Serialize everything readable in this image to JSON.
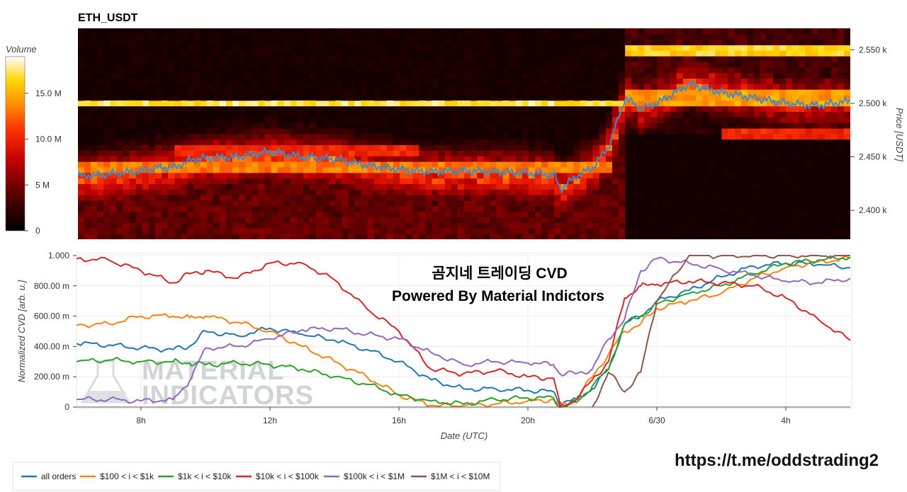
{
  "heatmap": {
    "title": "ETH_USDT",
    "colorbar_label": "Volume",
    "colorbar_ticks": [
      "15.0 M",
      "10.0 M",
      "5 M",
      "0"
    ],
    "colorbar_tick_values": [
      15,
      10,
      5,
      0
    ],
    "colorbar_max": 19,
    "y_label": "Price [USDT]",
    "y_ticks": [
      "2.550 k",
      "2.500 k",
      "2.450 k",
      "2.400 k"
    ],
    "y_tick_values": [
      2550,
      2500,
      2450,
      2400
    ],
    "y_range": [
      2373,
      2570
    ],
    "price_line_color": "#3b8bd0"
  },
  "cvd": {
    "y_label": "Normalized CVD [arb. u.]",
    "y_ticks": [
      "1.000",
      "800.00 m",
      "600.00 m",
      "400.00 m",
      "200.00 m",
      "0"
    ],
    "y_tick_values": [
      1,
      0.8,
      0.6,
      0.4,
      0.2,
      0
    ],
    "x_ticks": [
      "8h",
      "12h",
      "16h",
      "20h",
      "6/30",
      "4h"
    ],
    "x_tick_values": [
      8,
      12,
      16,
      20,
      24,
      28
    ],
    "x_range": [
      6,
      30
    ],
    "x_label": "Date (UTC)",
    "overlay_line1": "곰지네 트레이딩 CVD",
    "overlay_line2": "Powered By Material Indictors",
    "watermark_line1": "MATERIAL",
    "watermark_line2": "INDICATORS"
  },
  "legend": {
    "items": [
      {
        "label": "all orders",
        "color": "#1f77b4"
      },
      {
        "label": "$100 < i < $1k",
        "color": "#ff7f0e"
      },
      {
        "label": "$1k < i < $10k",
        "color": "#2ca02c"
      },
      {
        "label": "$10k < i < $100k",
        "color": "#d62728"
      },
      {
        "label": "$100k < i < $1M",
        "color": "#9467bd"
      },
      {
        "label": "$1M < i < $10M",
        "color": "#8c564b"
      }
    ]
  },
  "footer_link": "https://t.me/oddstrading2",
  "chart_data": [
    {
      "type": "heatmap",
      "title": "ETH_USDT",
      "x_range_hours_utc": [
        6,
        30
      ],
      "y_label": "Price [USDT]",
      "y_range": [
        2373,
        2570
      ],
      "colorbar_label": "Volume",
      "color_range": [
        0,
        19000000
      ],
      "price_line": {
        "x": [
          6,
          7,
          8,
          8.5,
          9,
          9.5,
          10,
          11,
          12,
          13,
          14,
          15,
          16,
          17,
          18,
          19,
          20,
          20.8,
          21,
          21.5,
          22,
          22.5,
          23,
          23.5,
          24,
          25,
          26,
          27,
          28,
          29,
          30
        ],
        "y": [
          2432,
          2434,
          2437,
          2440,
          2440,
          2447,
          2449,
          2450,
          2455,
          2450,
          2448,
          2442,
          2438,
          2436,
          2437,
          2436,
          2435,
          2433,
          2420,
          2432,
          2440,
          2460,
          2505,
          2495,
          2500,
          2518,
          2510,
          2505,
          2500,
          2498,
          2502
        ]
      },
      "bands": [
        {
          "price_low": 2497,
          "price_high": 2503,
          "x_end": 23.0,
          "level_M": 16
        },
        {
          "price_low": 2437,
          "price_high": 2447,
          "x_end": 22.5,
          "level_M": 12
        },
        {
          "price_low": 2451,
          "price_high": 2461,
          "x_start": 9.0,
          "x_end": 16.5,
          "level_M": 9
        },
        {
          "price_low": 2545,
          "price_high": 2556,
          "x_start": 23.0,
          "level_M": 15
        },
        {
          "price_low": 2500,
          "price_high": 2512,
          "x_start": 23.0,
          "level_M": 13
        },
        {
          "price_low": 2468,
          "price_high": 2477,
          "x_start": 26.0,
          "level_M": 9
        }
      ]
    },
    {
      "type": "line",
      "xlabel": "Date (UTC)",
      "ylabel": "Normalized CVD [arb. u.]",
      "ylim": [
        0,
        1
      ],
      "xlim": [
        6,
        30
      ],
      "x": [
        6,
        7,
        8,
        9,
        9.5,
        10,
        11,
        12,
        13,
        14,
        15,
        16,
        17,
        18,
        19,
        20,
        20.8,
        21,
        21.5,
        22,
        22.5,
        23,
        23.5,
        24,
        25,
        26,
        27,
        28,
        29,
        30
      ],
      "series": [
        {
          "name": "all orders",
          "values": [
            0.42,
            0.41,
            0.39,
            0.38,
            0.4,
            0.5,
            0.47,
            0.52,
            0.48,
            0.44,
            0.38,
            0.3,
            0.18,
            0.12,
            0.12,
            0.11,
            0.1,
            0.03,
            0.05,
            0.12,
            0.25,
            0.55,
            0.6,
            0.7,
            0.77,
            0.86,
            0.93,
            0.95,
            0.94,
            0.92
          ]
        },
        {
          "name": "$100 < i < $1k",
          "values": [
            0.54,
            0.55,
            0.6,
            0.6,
            0.59,
            0.6,
            0.56,
            0.5,
            0.4,
            0.3,
            0.2,
            0.08,
            0.01,
            0.01,
            0.02,
            0.04,
            0.05,
            0.0,
            0.05,
            0.2,
            0.35,
            0.5,
            0.55,
            0.65,
            0.7,
            0.75,
            0.85,
            0.92,
            0.96,
            0.98
          ]
        },
        {
          "name": "$1k < i < $10k",
          "values": [
            0.3,
            0.31,
            0.3,
            0.3,
            0.29,
            0.28,
            0.29,
            0.28,
            0.25,
            0.2,
            0.15,
            0.08,
            0.04,
            0.02,
            0.05,
            0.06,
            0.06,
            0.0,
            0.03,
            0.14,
            0.25,
            0.55,
            0.6,
            0.68,
            0.75,
            0.8,
            0.88,
            0.95,
            0.97,
            0.99
          ]
        },
        {
          "name": "$10k < i < $100k",
          "values": [
            0.98,
            0.97,
            0.9,
            0.82,
            0.88,
            0.9,
            0.85,
            0.95,
            0.95,
            0.84,
            0.65,
            0.5,
            0.25,
            0.22,
            0.24,
            0.2,
            0.19,
            0.0,
            0.05,
            0.18,
            0.3,
            0.72,
            0.8,
            0.81,
            0.83,
            0.82,
            0.8,
            0.72,
            0.58,
            0.44
          ]
        },
        {
          "name": "$100k < i < $1M",
          "values": [
            0.05,
            0.05,
            0.04,
            0.05,
            0.17,
            0.39,
            0.4,
            0.45,
            0.51,
            0.52,
            0.48,
            0.45,
            0.36,
            0.28,
            0.3,
            0.29,
            0.28,
            0.22,
            0.22,
            0.25,
            0.45,
            0.58,
            0.9,
            0.98,
            0.95,
            0.91,
            0.87,
            0.83,
            0.82,
            0.85
          ]
        },
        {
          "name": "$1M < i < $10M",
          "values": [
            null,
            null,
            null,
            null,
            null,
            null,
            null,
            null,
            null,
            null,
            null,
            null,
            null,
            null,
            null,
            null,
            null,
            null,
            null,
            0.0,
            0.23,
            0.1,
            0.23,
            0.7,
            1.0,
            1.0,
            1.0,
            1.0,
            1.0,
            1.0
          ]
        }
      ]
    }
  ]
}
